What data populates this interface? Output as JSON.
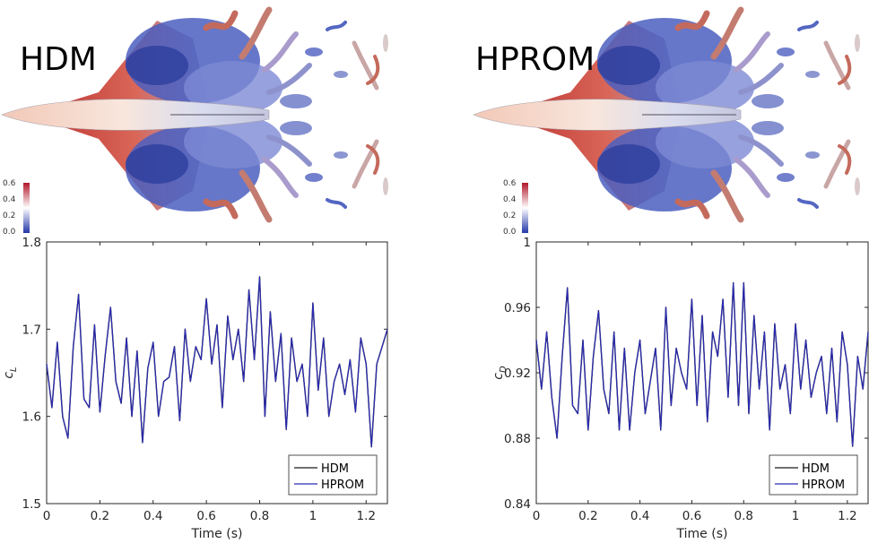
{
  "panels": [
    {
      "title": "HDM",
      "colorbar": {
        "ticks": [
          "0.6",
          "0.4",
          "0.2",
          "0.0"
        ],
        "colors": [
          "#b2182b",
          "#ffffff",
          "#2437a8"
        ]
      }
    },
    {
      "title": "HPROM",
      "colorbar": {
        "ticks": [
          "0.6",
          "0.4",
          "0.2",
          "0.0"
        ],
        "colors": [
          "#b2182b",
          "#ffffff",
          "#2437a8"
        ]
      }
    }
  ],
  "chart_data": [
    {
      "type": "line",
      "xlabel": "Time (s)",
      "ylabel": "c",
      "ylabel_sub": "L",
      "xlim": [
        0,
        1.28
      ],
      "ylim": [
        1.5,
        1.8
      ],
      "xticks": [
        "0",
        "0.2",
        "0.4",
        "0.6",
        "0.8",
        "1",
        "1.2"
      ],
      "yticks": [
        "1.5",
        "1.6",
        "1.7",
        "1.8"
      ],
      "legend": {
        "placement": "bottom-right",
        "entries": [
          "HDM",
          "HPROM"
        ]
      },
      "series": [
        {
          "name": "HDM",
          "color": "#1a1a1a",
          "x": [
            0,
            0.02,
            0.04,
            0.06,
            0.08,
            0.1,
            0.12,
            0.14,
            0.16,
            0.18,
            0.2,
            0.22,
            0.24,
            0.26,
            0.28,
            0.3,
            0.32,
            0.34,
            0.36,
            0.38,
            0.4,
            0.42,
            0.44,
            0.46,
            0.48,
            0.5,
            0.52,
            0.54,
            0.56,
            0.58,
            0.6,
            0.62,
            0.64,
            0.66,
            0.68,
            0.7,
            0.72,
            0.74,
            0.76,
            0.78,
            0.8,
            0.82,
            0.84,
            0.86,
            0.88,
            0.9,
            0.92,
            0.94,
            0.96,
            0.98,
            1.0,
            1.02,
            1.04,
            1.06,
            1.08,
            1.1,
            1.12,
            1.14,
            1.16,
            1.18,
            1.2,
            1.22,
            1.24,
            1.26,
            1.28
          ],
          "y": [
            1.66,
            1.61,
            1.685,
            1.6,
            1.575,
            1.68,
            1.74,
            1.62,
            1.61,
            1.705,
            1.605,
            1.67,
            1.725,
            1.64,
            1.615,
            1.69,
            1.6,
            1.675,
            1.57,
            1.655,
            1.685,
            1.6,
            1.64,
            1.645,
            1.68,
            1.595,
            1.7,
            1.64,
            1.68,
            1.665,
            1.735,
            1.66,
            1.705,
            1.61,
            1.715,
            1.665,
            1.7,
            1.64,
            1.745,
            1.665,
            1.76,
            1.6,
            1.72,
            1.64,
            1.695,
            1.585,
            1.69,
            1.64,
            1.66,
            1.6,
            1.73,
            1.63,
            1.69,
            1.6,
            1.64,
            1.66,
            1.625,
            1.665,
            1.605,
            1.69,
            1.66,
            1.565,
            1.66,
            1.68,
            1.7
          ]
        },
        {
          "name": "HPROM",
          "color": "#2b2bb3",
          "x": [
            0,
            0.02,
            0.04,
            0.06,
            0.08,
            0.1,
            0.12,
            0.14,
            0.16,
            0.18,
            0.2,
            0.22,
            0.24,
            0.26,
            0.28,
            0.3,
            0.32,
            0.34,
            0.36,
            0.38,
            0.4,
            0.42,
            0.44,
            0.46,
            0.48,
            0.5,
            0.52,
            0.54,
            0.56,
            0.58,
            0.6,
            0.62,
            0.64,
            0.66,
            0.68,
            0.7,
            0.72,
            0.74,
            0.76,
            0.78,
            0.8,
            0.82,
            0.84,
            0.86,
            0.88,
            0.9,
            0.92,
            0.94,
            0.96,
            0.98,
            1.0,
            1.02,
            1.04,
            1.06,
            1.08,
            1.1,
            1.12,
            1.14,
            1.16,
            1.18,
            1.2,
            1.22,
            1.24,
            1.26,
            1.28
          ],
          "y": [
            1.66,
            1.61,
            1.685,
            1.6,
            1.575,
            1.68,
            1.74,
            1.62,
            1.61,
            1.705,
            1.605,
            1.67,
            1.725,
            1.64,
            1.615,
            1.69,
            1.6,
            1.675,
            1.57,
            1.655,
            1.685,
            1.6,
            1.64,
            1.645,
            1.68,
            1.595,
            1.7,
            1.64,
            1.68,
            1.665,
            1.735,
            1.66,
            1.705,
            1.61,
            1.715,
            1.665,
            1.7,
            1.64,
            1.745,
            1.665,
            1.76,
            1.6,
            1.72,
            1.64,
            1.695,
            1.585,
            1.69,
            1.64,
            1.66,
            1.6,
            1.73,
            1.63,
            1.69,
            1.6,
            1.64,
            1.66,
            1.625,
            1.665,
            1.605,
            1.69,
            1.66,
            1.565,
            1.66,
            1.68,
            1.7
          ]
        }
      ]
    },
    {
      "type": "line",
      "xlabel": "Time (s)",
      "ylabel": "c",
      "ylabel_sub": "D",
      "xlim": [
        0,
        1.28
      ],
      "ylim": [
        0.84,
        1.0
      ],
      "xticks": [
        "0",
        "0.2",
        "0.4",
        "0.6",
        "0.8",
        "1",
        "1.2"
      ],
      "yticks": [
        "0.84",
        "0.88",
        "0.92",
        "0.96",
        "1"
      ],
      "legend": {
        "placement": "bottom-right",
        "entries": [
          "HDM",
          "HPROM"
        ]
      },
      "series": [
        {
          "name": "HDM",
          "color": "#1a1a1a",
          "x": [
            0,
            0.02,
            0.04,
            0.06,
            0.08,
            0.1,
            0.12,
            0.14,
            0.16,
            0.18,
            0.2,
            0.22,
            0.24,
            0.26,
            0.28,
            0.3,
            0.32,
            0.34,
            0.36,
            0.38,
            0.4,
            0.42,
            0.44,
            0.46,
            0.48,
            0.5,
            0.52,
            0.54,
            0.56,
            0.58,
            0.6,
            0.62,
            0.64,
            0.66,
            0.68,
            0.7,
            0.72,
            0.74,
            0.76,
            0.78,
            0.8,
            0.82,
            0.84,
            0.86,
            0.88,
            0.9,
            0.92,
            0.94,
            0.96,
            0.98,
            1.0,
            1.02,
            1.04,
            1.06,
            1.08,
            1.1,
            1.12,
            1.14,
            1.16,
            1.18,
            1.2,
            1.22,
            1.24,
            1.26,
            1.28
          ],
          "y": [
            0.94,
            0.91,
            0.945,
            0.905,
            0.88,
            0.93,
            0.972,
            0.9,
            0.895,
            0.94,
            0.885,
            0.93,
            0.958,
            0.91,
            0.895,
            0.945,
            0.885,
            0.935,
            0.885,
            0.92,
            0.94,
            0.895,
            0.915,
            0.935,
            0.885,
            0.96,
            0.9,
            0.935,
            0.92,
            0.91,
            0.965,
            0.9,
            0.955,
            0.89,
            0.945,
            0.93,
            0.965,
            0.905,
            0.975,
            0.9,
            0.975,
            0.895,
            0.955,
            0.91,
            0.945,
            0.885,
            0.95,
            0.91,
            0.925,
            0.895,
            0.95,
            0.91,
            0.94,
            0.905,
            0.92,
            0.93,
            0.895,
            0.935,
            0.89,
            0.945,
            0.925,
            0.875,
            0.93,
            0.91,
            0.945
          ]
        },
        {
          "name": "HPROM",
          "color": "#2b2bb3",
          "x": [
            0,
            0.02,
            0.04,
            0.06,
            0.08,
            0.1,
            0.12,
            0.14,
            0.16,
            0.18,
            0.2,
            0.22,
            0.24,
            0.26,
            0.28,
            0.3,
            0.32,
            0.34,
            0.36,
            0.38,
            0.4,
            0.42,
            0.44,
            0.46,
            0.48,
            0.5,
            0.52,
            0.54,
            0.56,
            0.58,
            0.6,
            0.62,
            0.64,
            0.66,
            0.68,
            0.7,
            0.72,
            0.74,
            0.76,
            0.78,
            0.8,
            0.82,
            0.84,
            0.86,
            0.88,
            0.9,
            0.92,
            0.94,
            0.96,
            0.98,
            1.0,
            1.02,
            1.04,
            1.06,
            1.08,
            1.1,
            1.12,
            1.14,
            1.16,
            1.18,
            1.2,
            1.22,
            1.24,
            1.26,
            1.28
          ],
          "y": [
            0.94,
            0.91,
            0.945,
            0.905,
            0.88,
            0.93,
            0.972,
            0.9,
            0.895,
            0.94,
            0.885,
            0.93,
            0.958,
            0.91,
            0.895,
            0.945,
            0.885,
            0.935,
            0.885,
            0.92,
            0.94,
            0.895,
            0.915,
            0.935,
            0.885,
            0.96,
            0.9,
            0.935,
            0.92,
            0.91,
            0.965,
            0.9,
            0.955,
            0.89,
            0.945,
            0.93,
            0.965,
            0.905,
            0.975,
            0.9,
            0.975,
            0.895,
            0.955,
            0.91,
            0.945,
            0.885,
            0.95,
            0.91,
            0.925,
            0.895,
            0.95,
            0.91,
            0.94,
            0.905,
            0.92,
            0.93,
            0.895,
            0.935,
            0.89,
            0.945,
            0.925,
            0.875,
            0.93,
            0.91,
            0.945
          ]
        }
      ]
    }
  ]
}
